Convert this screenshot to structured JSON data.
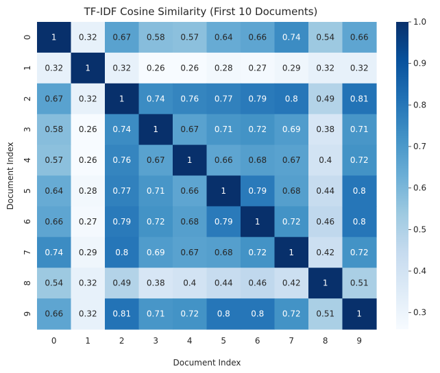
{
  "chart_data": {
    "type": "heatmap",
    "title": "TF-IDF Cosine Similarity (First 10 Documents)",
    "xlabel": "Document Index",
    "ylabel": "Document Index",
    "x_categories": [
      "0",
      "1",
      "2",
      "3",
      "4",
      "5",
      "6",
      "7",
      "8",
      "9"
    ],
    "y_categories": [
      "0",
      "1",
      "2",
      "3",
      "4",
      "5",
      "6",
      "7",
      "8",
      "9"
    ],
    "values": [
      [
        1,
        0.32,
        0.67,
        0.58,
        0.57,
        0.64,
        0.66,
        0.74,
        0.54,
        0.66
      ],
      [
        0.32,
        1,
        0.32,
        0.26,
        0.26,
        0.28,
        0.27,
        0.29,
        0.32,
        0.32
      ],
      [
        0.67,
        0.32,
        1,
        0.74,
        0.76,
        0.77,
        0.79,
        0.8,
        0.49,
        0.81
      ],
      [
        0.58,
        0.26,
        0.74,
        1,
        0.67,
        0.71,
        0.72,
        0.69,
        0.38,
        0.71
      ],
      [
        0.57,
        0.26,
        0.76,
        0.67,
        1,
        0.66,
        0.68,
        0.67,
        0.4,
        0.72
      ],
      [
        0.64,
        0.28,
        0.77,
        0.71,
        0.66,
        1,
        0.79,
        0.68,
        0.44,
        0.8
      ],
      [
        0.66,
        0.27,
        0.79,
        0.72,
        0.68,
        0.79,
        1,
        0.72,
        0.46,
        0.8
      ],
      [
        0.74,
        0.29,
        0.8,
        0.69,
        0.67,
        0.68,
        0.72,
        1,
        0.42,
        0.72
      ],
      [
        0.54,
        0.32,
        0.49,
        0.38,
        0.4,
        0.44,
        0.46,
        0.42,
        1,
        0.51
      ],
      [
        0.66,
        0.32,
        0.81,
        0.71,
        0.72,
        0.8,
        0.8,
        0.72,
        0.51,
        1
      ]
    ],
    "colormap": "Blues",
    "vmin": 0.26,
    "vmax": 1,
    "colorbar_ticks": [
      0.3,
      0.4,
      0.5,
      0.6,
      0.7,
      0.8,
      0.9,
      1.0
    ],
    "colorbar_tick_labels": [
      "0.3",
      "0.4",
      "0.5",
      "0.6",
      "0.7",
      "0.8",
      "0.9",
      "1.0"
    ],
    "annotations": true,
    "grid": false
  }
}
